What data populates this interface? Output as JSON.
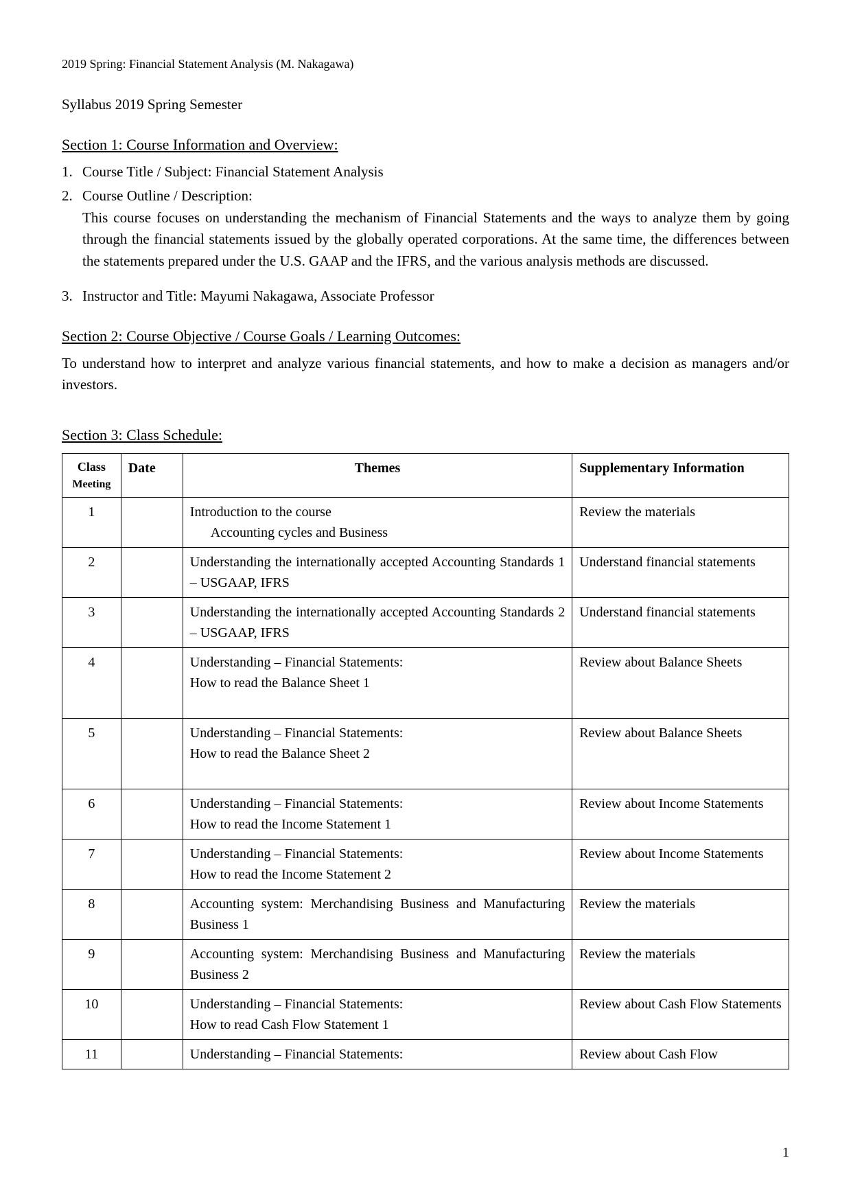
{
  "header": "2019 Spring: Financial Statement Analysis (M. Nakagawa)",
  "syllabus_title": "Syllabus 2019 Spring Semester",
  "section1": {
    "heading": "Section 1: Course Information and Overview:",
    "item1_num": "1.",
    "item1_label": "Course Title / Subject: Financial Statement Analysis",
    "item2_num": "2.",
    "item2_label": "Course Outline / Description:",
    "item2_desc": "This course focuses on understanding the mechanism of Financial Statements and the ways to analyze them by going through the financial statements issued by the globally operated corporations. At the same time, the differences between the statements prepared under the U.S. GAAP and the IFRS, and the various analysis methods are discussed.",
    "item3_num": "3.",
    "item3_label": "Instructor and Title:   Mayumi Nakagawa, Associate Professor"
  },
  "section2": {
    "heading": "Section 2: Course Objective / Course Goals / Learning Outcomes:",
    "desc": "To understand how to interpret and analyze various financial statements, and how to make a decision as managers and/or investors."
  },
  "section3": {
    "heading": "Section 3: Class Schedule:"
  },
  "table": {
    "headers": {
      "class": "Class",
      "meeting": "Meeting",
      "date": "Date",
      "themes": "Themes",
      "supp": "Supplementary Information"
    },
    "rows": [
      {
        "num": "1",
        "theme_line1": "Introduction to the course",
        "theme_line2": "Accounting cycles and Business",
        "supp": "Review the materials"
      },
      {
        "num": "2",
        "theme_line1": "Understanding the internationally accepted Accounting Standards 1 – USGAAP, IFRS",
        "supp": "Understand financial statements"
      },
      {
        "num": "3",
        "theme_line1": "Understanding the internationally accepted Accounting Standards 2 – USGAAP, IFRS",
        "supp": "Understand financial statements"
      },
      {
        "num": "4",
        "theme_line1": "Understanding – Financial Statements:",
        "theme_line2": "How to read the Balance Sheet 1",
        "supp": "Review about Balance Sheets",
        "extra_space": true
      },
      {
        "num": "5",
        "theme_line1": "Understanding – Financial Statements:",
        "theme_line2": "How to read the Balance Sheet 2",
        "supp": "Review about Balance Sheets",
        "extra_space": true
      },
      {
        "num": "6",
        "theme_line1": "Understanding – Financial Statements:",
        "theme_line2": "How to read the Income Statement 1",
        "supp": "Review about Income Statements"
      },
      {
        "num": "7",
        "theme_line1": "Understanding – Financial Statements:",
        "theme_line2": "How to read the Income Statement 2",
        "supp": "Review about Income Statements"
      },
      {
        "num": "8",
        "theme_line1": "Accounting system: Merchandising Business and Manufacturing Business 1",
        "supp": "Review the materials"
      },
      {
        "num": "9",
        "theme_line1": "Accounting system: Merchandising Business and Manufacturing Business 2",
        "supp": "Review the materials"
      },
      {
        "num": "10",
        "theme_line1": "Understanding – Financial Statements:",
        "theme_line2": "How to read Cash Flow Statement 1",
        "supp": "Review about Cash Flow Statements"
      },
      {
        "num": "11",
        "theme_line1": "Understanding – Financial Statements:",
        "supp": "Review about Cash Flow"
      }
    ]
  },
  "page_number": "1"
}
